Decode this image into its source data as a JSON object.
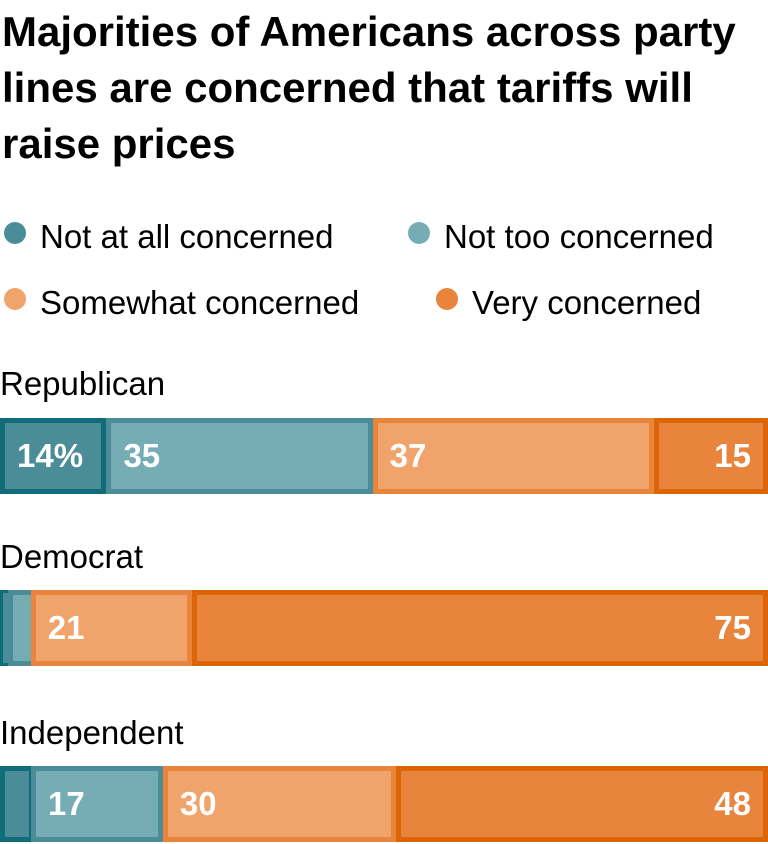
{
  "chart_data": {
    "type": "bar",
    "orientation": "horizontal-stacked",
    "title": "Majorities of Americans across party lines are concerned that tariffs will raise prices",
    "categories": [
      "Republican",
      "Democrat",
      "Independent"
    ],
    "series": [
      {
        "name": "Not at all concerned",
        "values": [
          14,
          1,
          4
        ],
        "color": "#4a8c97",
        "border": "#0f6c78"
      },
      {
        "name": "Not too concerned",
        "values": [
          35,
          3,
          17
        ],
        "color": "#76adb5",
        "border": "#4a8c97"
      },
      {
        "name": "Somewhat concerned",
        "values": [
          37,
          21,
          30
        ],
        "color": "#f0a46c",
        "border": "#e8843c"
      },
      {
        "name": "Very concerned",
        "values": [
          15,
          75,
          48
        ],
        "color": "#e8843c",
        "border": "#dc6508"
      }
    ],
    "labels": [
      [
        "14%",
        "35",
        "37",
        "15"
      ],
      [
        "",
        "",
        "21",
        "75"
      ],
      [
        "",
        "17",
        "30",
        "48"
      ]
    ],
    "xlim": [
      0,
      100
    ]
  }
}
